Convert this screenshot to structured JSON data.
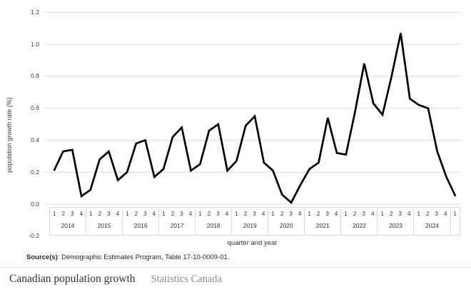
{
  "chart": {
    "y_axis_label": "population growth rate (%)",
    "x_axis_label": "quarter and year"
  },
  "source": {
    "label": "Source(s)",
    "text": ": Demographic Estimates Program, Table 17-10-0009-01."
  },
  "footer": {
    "title": "Canadian population growth",
    "attribution": "Statistics Canada"
  },
  "chart_data": {
    "type": "line",
    "title": "",
    "ylabel": "population growth rate (%)",
    "xlabel": "quarter and year",
    "ylim": [
      -0.2,
      1.2
    ],
    "yticks": [
      "1.2",
      "1.0",
      "0.8",
      "0.6",
      "0.4",
      "0.2",
      "0.0",
      "-0.2"
    ],
    "grid_on": true,
    "legend_position": "none",
    "line_color": "#000000",
    "grid_color": "#d9d9d9",
    "quarter_labels": [
      "1",
      "2",
      "3",
      "4"
    ],
    "groups": [
      {
        "year": "2014",
        "quarters": [
          "1",
          "2",
          "3",
          "4"
        ],
        "values": [
          0.21,
          0.33,
          0.34,
          0.05
        ]
      },
      {
        "year": "2015",
        "quarters": [
          "1",
          "2",
          "3",
          "4"
        ],
        "values": [
          0.09,
          0.28,
          0.33,
          0.15
        ]
      },
      {
        "year": "2016",
        "quarters": [
          "1",
          "2",
          "3",
          "4"
        ],
        "values": [
          0.2,
          0.38,
          0.4,
          0.17
        ]
      },
      {
        "year": "2017",
        "quarters": [
          "1",
          "2",
          "3",
          "4"
        ],
        "values": [
          0.22,
          0.42,
          0.48,
          0.21
        ]
      },
      {
        "year": "2018",
        "quarters": [
          "1",
          "2",
          "3",
          "4"
        ],
        "values": [
          0.25,
          0.46,
          0.5,
          0.21
        ]
      },
      {
        "year": "2019",
        "quarters": [
          "1",
          "2",
          "3",
          "4"
        ],
        "values": [
          0.27,
          0.49,
          0.55,
          0.26
        ]
      },
      {
        "year": "2020",
        "quarters": [
          "1",
          "2",
          "3",
          "4"
        ],
        "values": [
          0.21,
          0.06,
          0.01,
          0.12
        ]
      },
      {
        "year": "2021",
        "quarters": [
          "1",
          "2",
          "3",
          "4"
        ],
        "values": [
          0.22,
          0.26,
          0.54,
          0.32
        ]
      },
      {
        "year": "2022",
        "quarters": [
          "1",
          "2",
          "3",
          "4"
        ],
        "values": [
          0.31,
          0.58,
          0.88,
          0.63
        ]
      },
      {
        "year": "2023",
        "quarters": [
          "1",
          "2",
          "3",
          "4"
        ],
        "values": [
          0.56,
          0.8,
          1.07,
          0.66
        ]
      },
      {
        "year": "2024",
        "quarters": [
          "1",
          "2",
          "3",
          "4"
        ],
        "values": [
          0.62,
          0.6,
          0.33,
          0.17
        ]
      },
      {
        "year": "",
        "quarters": [
          "1"
        ],
        "values": [
          0.05
        ]
      }
    ]
  }
}
